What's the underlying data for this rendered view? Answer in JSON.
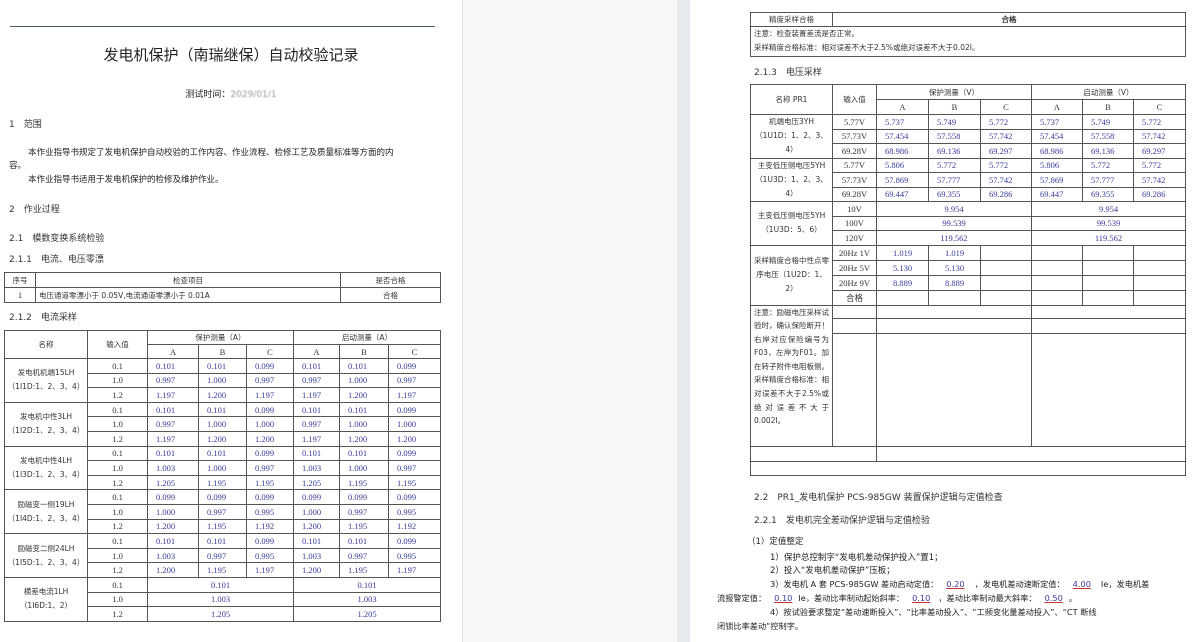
{
  "page1": {
    "title": "发电机保护（南瑞继保）自动校验记录",
    "test_time_label": "测试时间：",
    "test_time_value": "2029/01/1",
    "sec1": "1　范围",
    "para1a": "本作业指导书规定了发电机保护自动校验的工作内容、作业流程、检修工艺及质量标准等方面的内",
    "para1b": "容。",
    "para2": "本作业指导书适用于发电机保护的检修及维护作业。",
    "sec2": "2　作业过程",
    "sec21": "2.1　模数变换系统检验",
    "sec211": "2.1.1　电流、电压零漂",
    "zero_table": {
      "headers": [
        "序号",
        "检查项目",
        "是否合格"
      ],
      "row": [
        "1",
        "电压通道零漂小于 0.05V,电流通道零漂小于 0.01A",
        "合格"
      ]
    },
    "sec212": "2.1.2　电流采样",
    "current_table": {
      "h_name": "名称",
      "h_input": "输入值",
      "h_prot": "保护测量（A）",
      "h_start": "启动测量（A）",
      "phases": [
        "A",
        "B",
        "C",
        "A",
        "B",
        "C"
      ],
      "groups": [
        {
          "name": "发电机机端15LH",
          "terminal": "（1I1D:1、2、3、4）",
          "rows": [
            {
              "in": "0.1",
              "vals": [
                "0.101",
                "0.101",
                "0.099",
                "0.101",
                "0.101",
                "0.099"
              ]
            },
            {
              "in": "1.0",
              "vals": [
                "0.997",
                "1.000",
                "0.997",
                "0.997",
                "1.000",
                "0.997"
              ]
            },
            {
              "in": "1.2",
              "vals": [
                "1.197",
                "1.200",
                "1.197",
                "1.197",
                "1.200",
                "1.197"
              ]
            }
          ]
        },
        {
          "name": "发电机中性3LH",
          "terminal": "（1I2D:1、2、3、4）",
          "rows": [
            {
              "in": "0.1",
              "vals": [
                "0.101",
                "0.101",
                "0.099",
                "0.101",
                "0.101",
                "0.099"
              ]
            },
            {
              "in": "1.0",
              "vals": [
                "0.997",
                "1.000",
                "1.000",
                "0.997",
                "1.000",
                "1.000"
              ]
            },
            {
              "in": "1.2",
              "vals": [
                "1.197",
                "1.200",
                "1.200",
                "1.197",
                "1.200",
                "1.200"
              ]
            }
          ]
        },
        {
          "name": "发电机中性4LH",
          "terminal": "（1I3D:1、2、3、4）",
          "rows": [
            {
              "in": "0.1",
              "vals": [
                "0.101",
                "0.101",
                "0.099",
                "0.101",
                "0.101",
                "0.099"
              ]
            },
            {
              "in": "1.0",
              "vals": [
                "1.003",
                "1.000",
                "0.997",
                "1.003",
                "1.000",
                "0.997"
              ]
            },
            {
              "in": "1.2",
              "vals": [
                "1.205",
                "1.195",
                "1.195",
                "1.205",
                "1.195",
                "1.195"
              ]
            }
          ]
        },
        {
          "name": "励磁变一侧19LH",
          "terminal": "（1I4D:1、2、3、4）",
          "rows": [
            {
              "in": "0.1",
              "vals": [
                "0.099",
                "0.099",
                "0.099",
                "0.099",
                "0.099",
                "0.099"
              ]
            },
            {
              "in": "1.0",
              "vals": [
                "1.000",
                "0.997",
                "0.995",
                "1.000",
                "0.997",
                "0.995"
              ]
            },
            {
              "in": "1.2",
              "vals": [
                "1.200",
                "1.195",
                "1.192",
                "1.200",
                "1.195",
                "1.192"
              ]
            }
          ]
        },
        {
          "name": "励磁变二侧24LH",
          "terminal": "（1I5D:1、2、3、4）",
          "rows": [
            {
              "in": "0.1",
              "vals": [
                "0.101",
                "0.101",
                "0.099",
                "0.101",
                "0.101",
                "0.099"
              ]
            },
            {
              "in": "1.0",
              "vals": [
                "1.003",
                "0.997",
                "0.995",
                "1.003",
                "0.997",
                "0.995"
              ]
            },
            {
              "in": "1.2",
              "vals": [
                "1.200",
                "1.195",
                "1.197",
                "1.200",
                "1.195",
                "1.197"
              ]
            }
          ]
        },
        {
          "name": "横差电流1LH",
          "terminal": "（1I6D:1、2）",
          "merged": true,
          "rows": [
            {
              "in": "0.1",
              "vals": [
                "0.101",
                "0.101"
              ]
            },
            {
              "in": "1.0",
              "vals": [
                "1.003",
                "1.003"
              ]
            },
            {
              "in": "1.2",
              "vals": [
                "1.205",
                "1.205"
              ]
            }
          ]
        }
      ]
    }
  },
  "page2": {
    "acc_label": "精度采样合格",
    "acc_value": "合格",
    "note1": "注意：检查装置差流是否正常。",
    "note2": "采样精度合格标准：相对误差不大于2.5%或绝对误差不大于0.02I。",
    "sec213": "2.1.3　电压采样",
    "voltage_table": {
      "h_name": "名称 PR1",
      "h_input": "输入值",
      "h_prot": "保护测量（V）",
      "h_start": "启动测量（V）",
      "phases": [
        "A",
        "B",
        "C",
        "A",
        "B",
        "C"
      ],
      "groups": [
        {
          "name": "机端电压3YH",
          "terminal": "（1U1D：1、2、3、4）",
          "rows": [
            {
              "in": "5.77V",
              "vals": [
                "5.737",
                "5.749",
                "5.772",
                "5.737",
                "5.749",
                "5.772"
              ]
            },
            {
              "in": "57.73V",
              "vals": [
                "57.454",
                "57.558",
                "57.742",
                "57.454",
                "57.558",
                "57.742"
              ]
            },
            {
              "in": "69.28V",
              "vals": [
                "68.986",
                "69.136",
                "69.297",
                "68.986",
                "69.136",
                "69.297"
              ]
            }
          ]
        },
        {
          "name": "主变低压侧电压5YH",
          "terminal": "（1U3D：1、2、3、4）",
          "rows": [
            {
              "in": "5.77V",
              "vals": [
                "5.806",
                "5.772",
                "5.772",
                "5.806",
                "5.772",
                "5.772"
              ]
            },
            {
              "in": "57.73V",
              "vals": [
                "57.869",
                "57.777",
                "57.742",
                "57.869",
                "57.777",
                "57.742"
              ]
            },
            {
              "in": "69.28V",
              "vals": [
                "69.447",
                "69.355",
                "69.286",
                "69.447",
                "69.355",
                "69.286"
              ]
            }
          ]
        },
        {
          "name": "主变低压侧电压5YH",
          "terminal": "（1U3D：5、6）",
          "merged": true,
          "rows": [
            {
              "in": "10V",
              "vals": [
                "9.954",
                "9.954"
              ]
            },
            {
              "in": "100V",
              "vals": [
                "99.539",
                "99.539"
              ]
            },
            {
              "in": "120V",
              "vals": [
                "119.562",
                "119.562"
              ]
            }
          ]
        }
      ],
      "zero_seq": {
        "name": "采样精度合格中性点零序电压（1U2D：1、2）",
        "rows": [
          {
            "in": "20Hz 1V",
            "vals": [
              "1.019",
              "1.019"
            ]
          },
          {
            "in": "20Hz 5V",
            "vals": [
              "5.130",
              "5.130"
            ]
          },
          {
            "in": "20Hz 9V",
            "vals": [
              "8.889",
              "8.889"
            ]
          },
          {
            "in": "合格",
            "vals": [
              "",
              ""
            ]
          }
        ]
      },
      "excite_note": "注意：励磁电压采样试验时，确认保险断开！右岸对应保险编号为F03，左岸为F01。加在转子附件电阻板侧。采样精度合格标准：相对误差不大于2.5%或绝对误差不大于0.002I。"
    },
    "sec22": "2.2　PR1_发电机保护 PCS-985GW 装置保护逻辑与定值检查",
    "sec221": "2.2.1　发电机完全差动保护逻辑与定值检验",
    "item1": "（1）定值整定",
    "l1": "1）保护总控制字“发电机差动保护投入”置1；",
    "l2": "2）投入“发电机差动保护”压板；",
    "l3a": "3）发电机 A 套 PCS-985GW 差动启动定值：",
    "v_start": "0.20",
    "l3b": "，发电机差动速断定值：",
    "v_quick": "4.00",
    "l3c": "Ie，发电机差",
    "l4a": "流报警定值：",
    "v_alarm": "0.10",
    "l4b": "Ie，差动比率制动起始斜率：",
    "v_slope1": "0.10",
    "l4c": "，差动比率制动最大斜率：",
    "v_slope2": "0.50",
    "l4d": "。",
    "l5": "4）按试验要求整定“差动速断投入”、“比率差动投入”、“工频变化量差动投入”、“CT 断线",
    "l6": "闭锁比率差动”控制字。"
  },
  "colors": {
    "value_text": "#3a3a9e",
    "border": "#555555",
    "gap_bg": "#f7f7f8"
  }
}
